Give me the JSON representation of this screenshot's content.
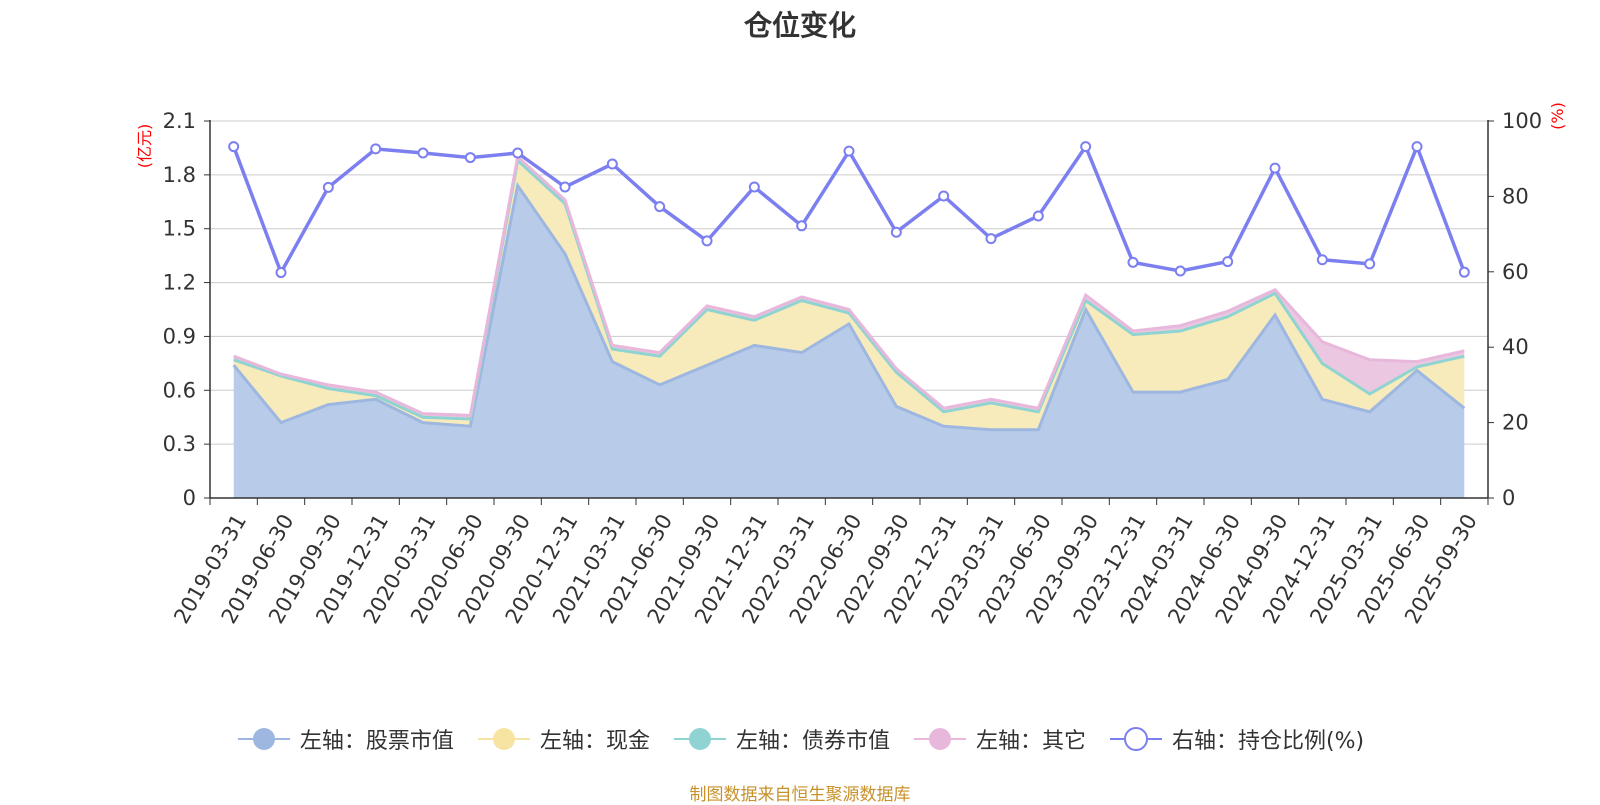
{
  "chart_data": {
    "type": "area",
    "title": "仓位变化",
    "left_axis_unit": "(亿元)",
    "right_axis_unit": "(%)",
    "left_ylim": [
      0,
      2.1
    ],
    "left_ticks": [
      "0",
      "0.3",
      "0.6",
      "0.9",
      "1.2",
      "1.5",
      "1.8",
      "2.1"
    ],
    "right_ylim": [
      0,
      100
    ],
    "right_ticks": [
      "0",
      "20",
      "40",
      "60",
      "80",
      "100"
    ],
    "categories": [
      "2019-03-31",
      "2019-06-30",
      "2019-09-30",
      "2019-12-31",
      "2020-03-31",
      "2020-06-30",
      "2020-09-30",
      "2020-12-31",
      "2021-03-31",
      "2021-06-30",
      "2021-09-30",
      "2021-12-31",
      "2022-03-31",
      "2022-06-30",
      "2022-09-30",
      "2022-12-31",
      "2023-03-31",
      "2023-06-30",
      "2023-09-30",
      "2023-12-31",
      "2024-03-31",
      "2024-06-30",
      "2024-09-30",
      "2024-12-31",
      "2025-03-31",
      "2025-06-30",
      "2025-09-30"
    ],
    "grid": true,
    "legend_position": "bottom-center",
    "series": [
      {
        "name": "左轴：股票市值",
        "axis": "left",
        "stack": true,
        "color": "#9db7e0",
        "fill": "#b8cbe9",
        "values": [
          0.74,
          0.42,
          0.52,
          0.55,
          0.42,
          0.4,
          1.74,
          1.36,
          0.76,
          0.63,
          0.74,
          0.85,
          0.81,
          0.97,
          0.51,
          0.4,
          0.38,
          0.38,
          1.05,
          0.59,
          0.59,
          0.66,
          1.02,
          0.55,
          0.48,
          0.71,
          0.5
        ]
      },
      {
        "name": "左轴：现金",
        "axis": "left",
        "stack": true,
        "color": "#f7e4a2",
        "fill": "#f8ebbb",
        "values": [
          0.03,
          0.26,
          0.09,
          0.02,
          0.03,
          0.04,
          0.14,
          0.28,
          0.07,
          0.16,
          0.31,
          0.14,
          0.29,
          0.06,
          0.19,
          0.08,
          0.15,
          0.1,
          0.05,
          0.32,
          0.34,
          0.35,
          0.12,
          0.2,
          0.1,
          0.02,
          0.29
        ]
      },
      {
        "name": "左轴：债券市值",
        "axis": "left",
        "stack": true,
        "color": "#8fd3d3",
        "fill": "#a8dddd",
        "values": [
          0,
          0,
          0,
          0,
          0,
          0,
          0,
          0,
          0,
          0,
          0,
          0,
          0,
          0,
          0,
          0,
          0,
          0,
          0,
          0,
          0,
          0,
          0,
          0,
          0,
          0,
          0
        ]
      },
      {
        "name": "左轴：其它",
        "axis": "left",
        "stack": true,
        "color": "#e8b8dc",
        "fill": "#ecc7e2",
        "values": [
          0.02,
          0.01,
          0.02,
          0.02,
          0.02,
          0.02,
          0.02,
          0.02,
          0.02,
          0.02,
          0.02,
          0.02,
          0.02,
          0.02,
          0.02,
          0.02,
          0.02,
          0.02,
          0.03,
          0.02,
          0.03,
          0.03,
          0.02,
          0.12,
          0.19,
          0.03,
          0.03
        ]
      },
      {
        "name": "右轴：持仓比例(%)",
        "axis": "right",
        "stack": false,
        "color": "#7b7ff0",
        "values": [
          93.2,
          59.8,
          82.4,
          92.6,
          91.5,
          90.3,
          91.5,
          82.5,
          88.6,
          77.3,
          68.2,
          82.5,
          72.2,
          92.0,
          70.5,
          80.1,
          68.8,
          74.8,
          93.2,
          62.5,
          60.2,
          62.7,
          87.5,
          63.2,
          62.1,
          93.2,
          59.9
        ]
      }
    ]
  },
  "source_note": "制图数据来自恒生聚源数据库"
}
